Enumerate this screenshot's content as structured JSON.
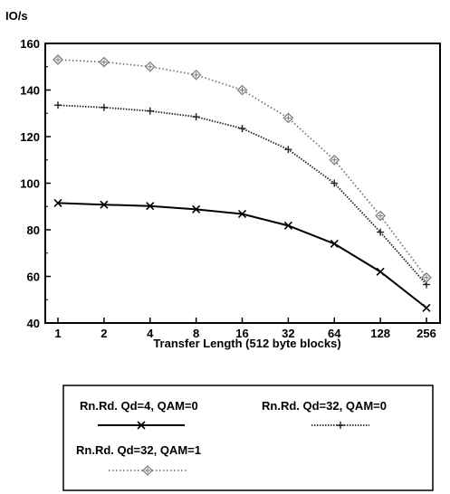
{
  "chart_data": {
    "type": "line",
    "title": "",
    "ylabel": "IO/s",
    "xlabel": "Transfer Length (512 byte blocks)",
    "categories": [
      "1",
      "2",
      "4",
      "8",
      "16",
      "32",
      "64",
      "128",
      "256"
    ],
    "ylim": [
      40,
      160
    ],
    "yticks": [
      40,
      60,
      80,
      100,
      120,
      140,
      160
    ],
    "grid": false,
    "legend_position": "bottom",
    "series": [
      {
        "name": "Rn.Rd. Qd=4, QAM=0",
        "color": "#000000",
        "line_style": "solid",
        "marker": "x",
        "values": [
          91.5,
          90.8,
          90.2,
          88.8,
          86.8,
          81.8,
          74.0,
          62.0,
          46.5
        ]
      },
      {
        "name": "Rn.Rd. Qd=32, QAM=0",
        "color": "#222222",
        "line_style": "dotted-dense",
        "marker": "plus",
        "values": [
          133.5,
          132.5,
          131.0,
          128.5,
          123.5,
          114.5,
          100.0,
          79.0,
          56.5
        ]
      },
      {
        "name": "Rn.Rd. Qd=32, QAM=1",
        "color": "#777777",
        "line_style": "dotted",
        "marker": "diamond-plus",
        "values": [
          153.0,
          152.0,
          150.0,
          146.5,
          140.0,
          128.0,
          110.0,
          86.0,
          59.5
        ]
      }
    ]
  }
}
